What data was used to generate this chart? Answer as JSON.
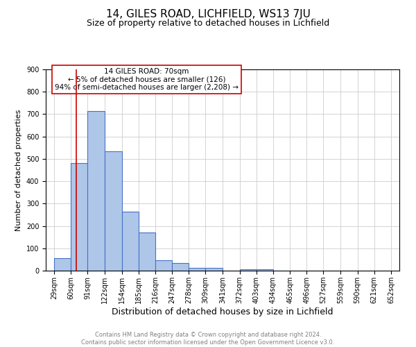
{
  "title": "14, GILES ROAD, LICHFIELD, WS13 7JU",
  "subtitle": "Size of property relative to detached houses in Lichfield",
  "xlabel": "Distribution of detached houses by size in Lichfield",
  "ylabel": "Number of detached properties",
  "bar_edges": [
    29,
    60,
    91,
    122,
    154,
    185,
    216,
    247,
    278,
    309,
    341,
    372,
    403,
    434,
    465,
    496,
    527,
    559,
    590,
    621,
    652
  ],
  "bar_heights": [
    55,
    480,
    715,
    535,
    265,
    170,
    47,
    35,
    13,
    12,
    0,
    7,
    5,
    0,
    0,
    0,
    0,
    0,
    0,
    0
  ],
  "bar_color": "#aec6e8",
  "bar_edge_color": "#4472c4",
  "bar_linewidth": 0.8,
  "red_line_x": 70,
  "red_line_color": "#cc0000",
  "annotation_text": "14 GILES ROAD: 70sqm\n← 5% of detached houses are smaller (126)\n94% of semi-detached houses are larger (2,208) →",
  "annotation_box_color": "#ffffff",
  "annotation_box_edge_color": "#cc0000",
  "ylim": [
    0,
    900
  ],
  "yticks": [
    0,
    100,
    200,
    300,
    400,
    500,
    600,
    700,
    800,
    900
  ],
  "grid_color": "#cccccc",
  "background_color": "#ffffff",
  "footer_text": "Contains HM Land Registry data © Crown copyright and database right 2024.\nContains public sector information licensed under the Open Government Licence v3.0.",
  "title_fontsize": 11,
  "subtitle_fontsize": 9,
  "xlabel_fontsize": 9,
  "ylabel_fontsize": 8,
  "tick_fontsize": 7,
  "annotation_fontsize": 7.5,
  "footer_fontsize": 6
}
